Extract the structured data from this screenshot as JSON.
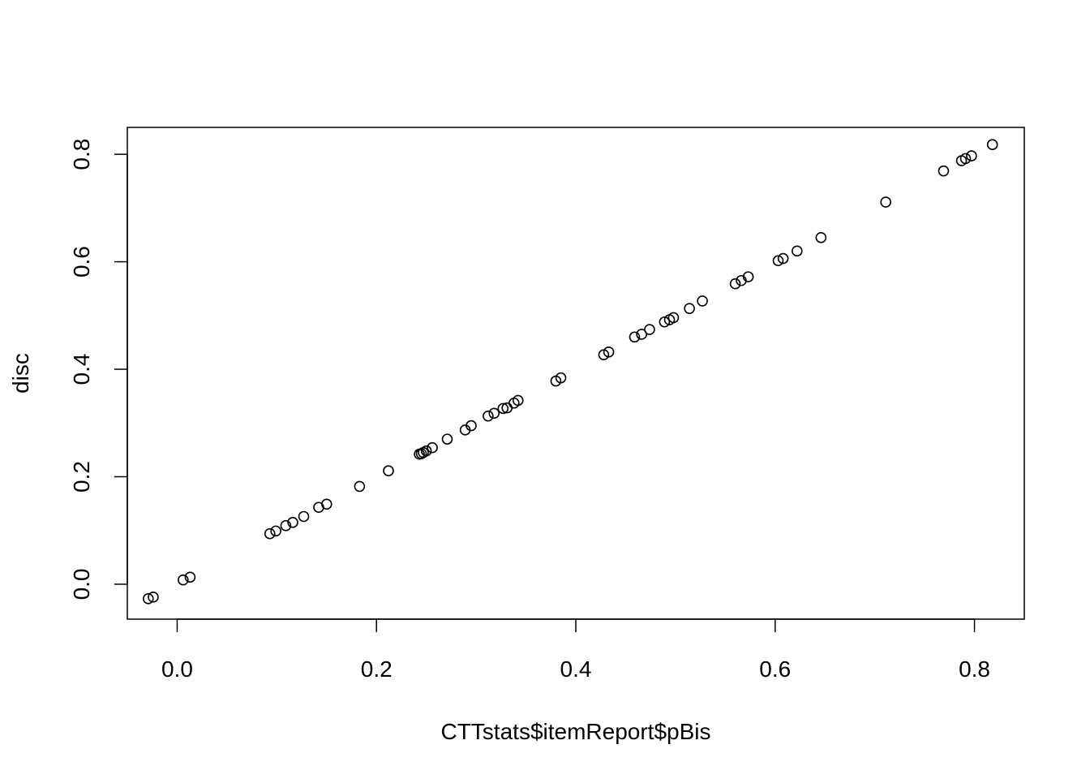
{
  "chart_data": {
    "type": "scatter",
    "title": "",
    "xlabel": "CTTstats$itemReport$pBis",
    "ylabel": "disc",
    "xlim": [
      -0.05,
      0.85
    ],
    "ylim": [
      -0.065,
      0.85
    ],
    "x_ticks": [
      "0.0",
      "0.2",
      "0.4",
      "0.6",
      "0.8"
    ],
    "y_ticks": [
      "0.0",
      "0.2",
      "0.4",
      "0.6",
      "0.8"
    ],
    "grid": false,
    "series": [
      {
        "points": [
          [
            -0.029,
            -0.027
          ],
          [
            -0.024,
            -0.024
          ],
          [
            0.006,
            0.008
          ],
          [
            0.013,
            0.013
          ],
          [
            0.093,
            0.094
          ],
          [
            0.099,
            0.099
          ],
          [
            0.109,
            0.109
          ],
          [
            0.116,
            0.115
          ],
          [
            0.127,
            0.126
          ],
          [
            0.142,
            0.143
          ],
          [
            0.15,
            0.149
          ],
          [
            0.183,
            0.182
          ],
          [
            0.212,
            0.211
          ],
          [
            0.243,
            0.242
          ],
          [
            0.245,
            0.243
          ],
          [
            0.247,
            0.245
          ],
          [
            0.25,
            0.248
          ],
          [
            0.256,
            0.254
          ],
          [
            0.271,
            0.27
          ],
          [
            0.289,
            0.287
          ],
          [
            0.295,
            0.295
          ],
          [
            0.312,
            0.313
          ],
          [
            0.318,
            0.318
          ],
          [
            0.327,
            0.327
          ],
          [
            0.331,
            0.328
          ],
          [
            0.338,
            0.337
          ],
          [
            0.342,
            0.342
          ],
          [
            0.38,
            0.378
          ],
          [
            0.385,
            0.384
          ],
          [
            0.428,
            0.427
          ],
          [
            0.433,
            0.432
          ],
          [
            0.459,
            0.46
          ],
          [
            0.466,
            0.465
          ],
          [
            0.474,
            0.474
          ],
          [
            0.489,
            0.488
          ],
          [
            0.494,
            0.492
          ],
          [
            0.498,
            0.496
          ],
          [
            0.514,
            0.513
          ],
          [
            0.527,
            0.527
          ],
          [
            0.56,
            0.559
          ],
          [
            0.566,
            0.565
          ],
          [
            0.573,
            0.572
          ],
          [
            0.603,
            0.602
          ],
          [
            0.608,
            0.606
          ],
          [
            0.622,
            0.62
          ],
          [
            0.646,
            0.645
          ],
          [
            0.711,
            0.711
          ],
          [
            0.769,
            0.769
          ],
          [
            0.787,
            0.788
          ],
          [
            0.791,
            0.792
          ],
          [
            0.797,
            0.797
          ],
          [
            0.818,
            0.818
          ]
        ]
      }
    ]
  }
}
